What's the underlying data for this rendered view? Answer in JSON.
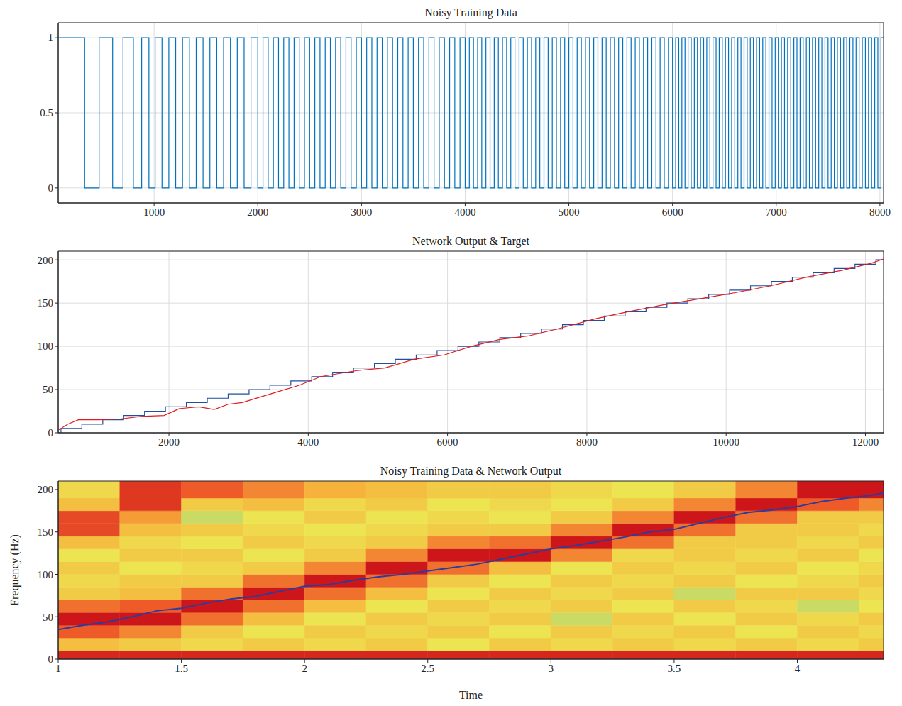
{
  "chart_data": [
    {
      "type": "line",
      "title": "Noisy Training Data",
      "xlim": [
        75,
        8035
      ],
      "xticks": [
        1000,
        2000,
        3000,
        4000,
        5000,
        6000,
        7000,
        8000
      ],
      "ylim": [
        -0.1,
        1.1
      ],
      "yticks": [
        0,
        0.5,
        1
      ],
      "grid": true,
      "series": [
        {
          "color": "#0072bd",
          "line_style": "step",
          "x": [
            75,
            330,
            470,
            600,
            700,
            800,
            880,
            950,
            1010,
            1076,
            1142,
            1208,
            1274,
            1340,
            1406,
            1472,
            1538,
            1604,
            1670,
            1736,
            1802,
            1868,
            1934,
            2000,
            2050,
            2100,
            2150,
            2200,
            2250,
            2300,
            2350,
            2400,
            2450,
            2500,
            2550,
            2600,
            2650,
            2700,
            2750,
            2800,
            2850,
            2900,
            2950,
            3000,
            3050,
            3100,
            3150,
            3200,
            3250,
            3300,
            3350,
            3400,
            3450,
            3500,
            3550,
            3600,
            3650,
            3700,
            3750,
            3800,
            3850,
            3900,
            3950,
            4000,
            4040,
            4080,
            4120,
            4160,
            4200,
            4240,
            4280,
            4320,
            4360,
            4400,
            4440,
            4480,
            4520,
            4560,
            4600,
            4640,
            4680,
            4720,
            4760,
            4800,
            4840,
            4880,
            4920,
            4960,
            5000,
            5040,
            5080,
            5120,
            5160,
            5200,
            5240,
            5280,
            5320,
            5360,
            5400,
            5440,
            5480,
            5520,
            5560,
            5600,
            5640,
            5680,
            5720,
            5760,
            5800,
            5840,
            5880,
            5920,
            5960,
            6000,
            6030,
            6060,
            6090,
            6120,
            6150,
            6180,
            6210,
            6240,
            6270,
            6300,
            6330,
            6360,
            6390,
            6420,
            6450,
            6480,
            6510,
            6540,
            6570,
            6600,
            6630,
            6660,
            6690,
            6720,
            6750,
            6780,
            6810,
            6840,
            6870,
            6900,
            6930,
            6960,
            6990,
            7020,
            7050,
            7080,
            7110,
            7140,
            7170,
            7200,
            7230,
            7260,
            7290,
            7320,
            7350,
            7380,
            7410,
            7440,
            7470,
            7500,
            7530,
            7560,
            7590,
            7620,
            7650,
            7680,
            7710,
            7740,
            7770,
            7800,
            7830,
            7860,
            7890,
            7920,
            7950,
            7980,
            8010,
            8035
          ],
          "values": [
            1,
            0,
            1,
            0,
            1,
            0,
            1,
            0,
            1,
            0,
            1,
            0,
            1,
            0,
            1,
            0,
            1,
            0,
            1,
            0,
            1,
            0,
            1,
            0,
            1,
            0,
            1,
            0,
            1,
            0,
            1,
            0,
            1,
            0,
            1,
            0,
            1,
            0,
            1,
            0,
            1,
            0,
            1,
            0,
            1,
            0,
            1,
            0,
            1,
            0,
            1,
            0,
            1,
            0,
            1,
            0,
            1,
            0,
            1,
            0,
            1,
            0,
            1,
            0,
            1,
            0,
            1,
            0,
            1,
            0,
            1,
            0,
            1,
            0,
            1,
            0,
            1,
            0,
            1,
            0,
            1,
            0,
            1,
            0,
            1,
            0,
            1,
            0,
            1,
            0,
            1,
            0,
            1,
            0,
            1,
            0,
            1,
            0,
            1,
            0,
            1,
            0,
            1,
            0,
            1,
            0,
            1,
            0,
            1,
            0,
            1,
            0,
            1,
            0,
            1,
            0,
            1,
            0,
            1,
            0,
            1,
            0,
            1,
            0,
            1,
            0,
            1,
            0,
            1,
            0,
            1,
            0,
            1,
            0,
            1,
            0,
            1,
            0,
            1,
            0,
            1,
            0,
            1,
            0,
            1,
            0,
            1,
            0,
            1,
            0,
            1,
            0,
            1,
            0,
            1,
            0,
            1,
            0,
            1,
            0,
            1,
            0,
            1,
            0,
            1,
            0,
            1,
            0,
            1,
            0,
            1,
            0,
            1,
            0,
            1,
            0,
            1,
            0,
            1,
            0,
            1,
            1
          ]
        }
      ]
    },
    {
      "type": "line",
      "title": "Network Output & Target",
      "xlim": [
        410,
        12260
      ],
      "xticks": [
        2000,
        4000,
        6000,
        8000,
        10000,
        12000
      ],
      "ylim": [
        0,
        210
      ],
      "yticks": [
        0,
        50,
        100,
        150,
        200
      ],
      "grid": true,
      "series": [
        {
          "color": "#1f4fa0",
          "line_style": "step",
          "x": [
            410,
            450,
            750,
            1050,
            1350,
            1650,
            1950,
            2250,
            2550,
            2850,
            3150,
            3450,
            3750,
            4050,
            4350,
            4650,
            4950,
            5250,
            5550,
            5850,
            6150,
            6450,
            6750,
            7050,
            7350,
            7650,
            7950,
            8250,
            8550,
            8850,
            9150,
            9450,
            9750,
            10050,
            10350,
            10650,
            10950,
            11250,
            11550,
            11850,
            12150,
            12260
          ],
          "values": [
            0,
            5,
            10,
            15,
            20,
            25,
            30,
            35,
            40,
            45,
            50,
            55,
            60,
            65,
            70,
            75,
            80,
            85,
            90,
            95,
            100,
            105,
            110,
            115,
            120,
            125,
            130,
            135,
            140,
            145,
            150,
            155,
            160,
            165,
            170,
            175,
            180,
            185,
            190,
            195,
            200,
            200
          ]
        },
        {
          "color": "#e31a1c",
          "x": [
            410,
            550,
            700,
            1000,
            1300,
            1600,
            1930,
            2150,
            2430,
            2650,
            2850,
            3050,
            3460,
            3870,
            4180,
            4700,
            5100,
            5520,
            5950,
            6340,
            6750,
            7160,
            7570,
            8130,
            8590,
            9100,
            9620,
            10130,
            10640,
            11150,
            11670,
            12080,
            12260
          ],
          "values": [
            3,
            10,
            15,
            15,
            16,
            19,
            20,
            28,
            30,
            27,
            33,
            35,
            45,
            55,
            65,
            72,
            75,
            85,
            90,
            100,
            108,
            112,
            120,
            132,
            140,
            148,
            155,
            162,
            170,
            180,
            188,
            196,
            201
          ]
        }
      ]
    },
    {
      "type": "heatmap",
      "title": "Noisy Training Data & Network Output",
      "xlabel": "Time",
      "ylabel": "Frequency (Hz)",
      "xlim": [
        1,
        4.35
      ],
      "xticks": [
        1,
        1.5,
        2,
        2.5,
        3,
        3.5,
        4
      ],
      "ylim": [
        0,
        210
      ],
      "yticks": [
        0,
        50,
        100,
        150,
        200
      ],
      "grid": false,
      "spectrogram": {
        "time_edges": [
          1,
          1.25,
          1.5,
          1.75,
          2,
          2.25,
          2.5,
          2.75,
          3,
          3.25,
          3.5,
          3.75,
          4,
          4.25,
          4.35
        ],
        "freq_edges": [
          0,
          10,
          25,
          40,
          55,
          70,
          85,
          100,
          115,
          130,
          145,
          160,
          175,
          190,
          210
        ],
        "power": [
          [
            0.95,
            0.55,
            0.8,
            1,
            0.75,
            0.5,
            0.45,
            0.5,
            0.4,
            0.55,
            0.85,
            0.85,
            0.55,
            0.45
          ],
          [
            0.95,
            0.5,
            0.7,
            1,
            0.8,
            0.55,
            0.5,
            0.4,
            0.5,
            0.45,
            0.55,
            0.65,
            0.9,
            0.9
          ],
          [
            0.95,
            0.45,
            0.5,
            0.75,
            1,
            0.75,
            0.5,
            0.45,
            0.5,
            0.4,
            0.5,
            0.35,
            0.5,
            0.8
          ],
          [
            0.95,
            0.5,
            0.4,
            0.55,
            0.75,
            1,
            0.75,
            0.5,
            0.4,
            0.5,
            0.45,
            0.4,
            0.55,
            0.7
          ],
          [
            0.95,
            0.45,
            0.5,
            0.4,
            0.55,
            0.75,
            1,
            0.7,
            0.5,
            0.45,
            0.4,
            0.5,
            0.45,
            0.6
          ],
          [
            0.95,
            0.5,
            0.45,
            0.5,
            0.4,
            0.55,
            0.75,
            1,
            0.7,
            0.5,
            0.45,
            0.4,
            0.5,
            0.55
          ],
          [
            0.95,
            0.4,
            0.5,
            0.45,
            0.5,
            0.4,
            0.5,
            0.75,
            1,
            0.7,
            0.5,
            0.45,
            0.4,
            0.5
          ],
          [
            0.95,
            0.5,
            0.4,
            0.5,
            0.45,
            0.5,
            0.4,
            0.55,
            1,
            0.75,
            0.5,
            0.4,
            0.45,
            0.5
          ],
          [
            0.95,
            0.45,
            0.5,
            0.35,
            0.5,
            0.45,
            0.5,
            0.4,
            0.7,
            1,
            0.7,
            0.5,
            0.4,
            0.45
          ],
          [
            0.95,
            0.5,
            0.45,
            0.5,
            0.4,
            0.5,
            0.45,
            0.5,
            0.45,
            0.75,
            1,
            0.7,
            0.5,
            0.4
          ],
          [
            0.95,
            0.45,
            0.5,
            0.4,
            0.5,
            0.35,
            0.5,
            0.45,
            0.5,
            0.5,
            0.75,
            1,
            0.7,
            0.5
          ],
          [
            0.95,
            0.5,
            0.4,
            0.5,
            0.45,
            0.5,
            0.4,
            0.5,
            0.45,
            0.5,
            0.5,
            0.75,
            1,
            0.7
          ],
          [
            0.95,
            0.45,
            0.5,
            0.45,
            0.35,
            0.5,
            0.45,
            0.4,
            0.5,
            0.45,
            0.5,
            0.5,
            0.8,
            1
          ],
          [
            0.95,
            0.5,
            0.45,
            0.5,
            0.4,
            0.45,
            0.5,
            0.45,
            0.4,
            0.5,
            0.45,
            0.5,
            0.7,
            1
          ]
        ]
      },
      "series": [
        {
          "color": "#2b3c9e",
          "x": [
            1,
            1.1,
            1.2,
            1.3,
            1.4,
            1.5,
            1.6,
            1.7,
            1.8,
            1.9,
            2,
            2.1,
            2.2,
            2.3,
            2.4,
            2.5,
            2.6,
            2.7,
            2.8,
            2.9,
            3,
            3.1,
            3.2,
            3.3,
            3.4,
            3.5,
            3.6,
            3.7,
            3.8,
            3.9,
            4,
            4.1,
            4.2,
            4.3,
            4.35
          ],
          "values": [
            35,
            40,
            44,
            50,
            57,
            60,
            66,
            71,
            74,
            80,
            86,
            88,
            93,
            97,
            100,
            104,
            108,
            112,
            118,
            124,
            130,
            134,
            139,
            144,
            150,
            153,
            160,
            167,
            173,
            176,
            180,
            186,
            190,
            193,
            196
          ]
        }
      ]
    }
  ]
}
